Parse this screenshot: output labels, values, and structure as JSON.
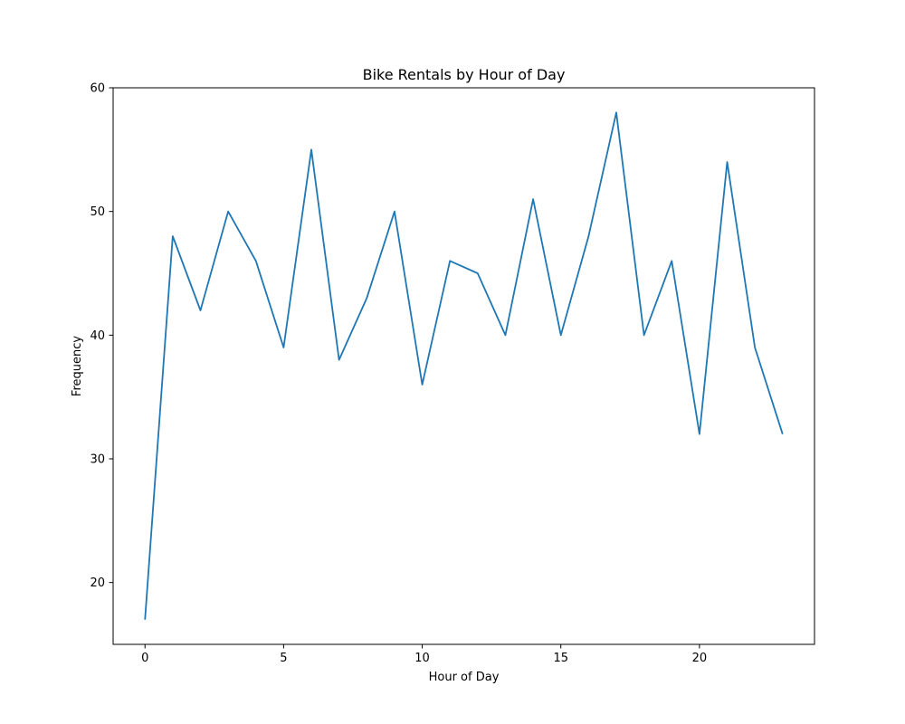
{
  "chart_data": {
    "type": "line",
    "title": "Bike Rentals by Hour of Day",
    "xlabel": "Hour of Day",
    "ylabel": "Frequency",
    "xlim": [
      -1.15,
      24.15
    ],
    "ylim": [
      15.0,
      60.0
    ],
    "xticks": [
      0,
      5,
      10,
      15,
      20
    ],
    "yticks": [
      20,
      30,
      40,
      50,
      60
    ],
    "grid": false,
    "legend": "none",
    "series": [
      {
        "color": "#1f77b4",
        "x": [
          0,
          1,
          2,
          3,
          4,
          5,
          6,
          7,
          8,
          9,
          10,
          11,
          12,
          13,
          14,
          15,
          16,
          17,
          18,
          19,
          20,
          21,
          22,
          23
        ],
        "y": [
          17,
          48,
          42,
          50,
          46,
          39,
          55,
          38,
          43,
          50,
          36,
          46,
          45,
          40,
          51,
          40,
          48,
          58,
          40,
          46,
          32,
          54,
          39,
          32
        ]
      }
    ]
  }
}
